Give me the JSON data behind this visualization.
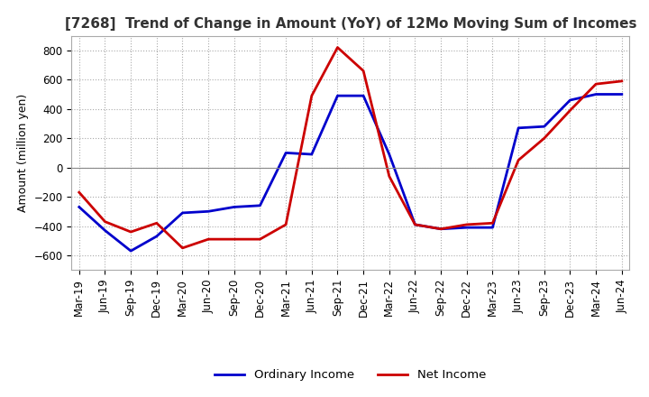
{
  "title": "[7268]  Trend of Change in Amount (YoY) of 12Mo Moving Sum of Incomes",
  "ylabel": "Amount (million yen)",
  "background_color": "#ffffff",
  "grid_color": "#aaaaaa",
  "line_color_ordinary": "#0000cc",
  "line_color_net": "#cc0000",
  "ylim": [
    -700,
    900
  ],
  "yticks": [
    -600,
    -400,
    -200,
    0,
    200,
    400,
    600,
    800
  ],
  "x_labels": [
    "Mar-19",
    "Jun-19",
    "Sep-19",
    "Dec-19",
    "Mar-20",
    "Jun-20",
    "Sep-20",
    "Dec-20",
    "Mar-21",
    "Jun-21",
    "Sep-21",
    "Dec-21",
    "Mar-22",
    "Jun-22",
    "Sep-22",
    "Dec-22",
    "Mar-23",
    "Jun-23",
    "Sep-23",
    "Dec-23",
    "Mar-24",
    "Jun-24"
  ],
  "ordinary_income": [
    -270,
    -430,
    -570,
    -470,
    -310,
    -300,
    -270,
    -260,
    100,
    90,
    490,
    490,
    90,
    -390,
    -420,
    -410,
    -410,
    270,
    280,
    460,
    500,
    500
  ],
  "net_income": [
    -170,
    -370,
    -440,
    -380,
    -550,
    -490,
    -490,
    -490,
    -390,
    490,
    820,
    660,
    -60,
    -390,
    -420,
    -390,
    -380,
    50,
    200,
    390,
    570,
    590
  ],
  "legend_ordinary": "Ordinary Income",
  "legend_net": "Net Income",
  "title_fontsize": 11,
  "axis_fontsize": 9,
  "tick_fontsize": 8.5
}
